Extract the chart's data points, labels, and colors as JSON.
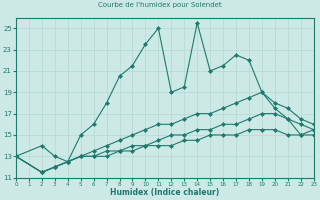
{
  "title": "Courbe de l'humidex pour Solendet",
  "xlabel": "Humidex (Indice chaleur)",
  "xlim": [
    0,
    23
  ],
  "ylim": [
    11,
    26
  ],
  "yticks": [
    11,
    13,
    15,
    17,
    19,
    21,
    23,
    25
  ],
  "xticks": [
    0,
    1,
    2,
    3,
    4,
    5,
    6,
    7,
    8,
    9,
    10,
    11,
    12,
    13,
    14,
    15,
    16,
    17,
    18,
    19,
    20,
    21,
    22,
    23
  ],
  "bg_color": "#cce9e5",
  "line_color": "#1e7a6d",
  "grid_color": "#b8dbd6",
  "lines": [
    {
      "x": [
        0,
        2,
        3,
        4,
        5,
        6,
        7,
        8,
        9,
        10,
        11,
        12,
        13,
        14,
        15,
        16,
        17,
        18,
        19,
        20,
        21,
        22,
        23
      ],
      "y": [
        13,
        14,
        13,
        12.5,
        15,
        16,
        18,
        20.5,
        21.5,
        23.5,
        25,
        19,
        19.5,
        25.5,
        21,
        21.5,
        22.5,
        22,
        19,
        17.5,
        16.5,
        15,
        15.5
      ]
    },
    {
      "x": [
        0,
        2,
        3,
        4,
        5,
        6,
        7,
        8,
        9,
        10,
        11,
        12,
        13,
        14,
        15,
        16,
        17,
        18,
        19,
        20,
        21,
        22,
        23
      ],
      "y": [
        13,
        11.5,
        12,
        12.5,
        13,
        13.5,
        14,
        14.5,
        15,
        15.5,
        16,
        16,
        16.5,
        17,
        17,
        17.5,
        18,
        18.5,
        19,
        18,
        17.5,
        16.5,
        16
      ]
    },
    {
      "x": [
        0,
        2,
        3,
        4,
        5,
        6,
        7,
        8,
        9,
        10,
        11,
        12,
        13,
        14,
        15,
        16,
        17,
        18,
        19,
        20,
        21,
        22,
        23
      ],
      "y": [
        13,
        11.5,
        12,
        12.5,
        13,
        13,
        13.5,
        13.5,
        14,
        14,
        14.5,
        15,
        15,
        15.5,
        15.5,
        16,
        16,
        16.5,
        17,
        17,
        16.5,
        16,
        15.5
      ]
    },
    {
      "x": [
        0,
        2,
        3,
        4,
        5,
        6,
        7,
        8,
        9,
        10,
        11,
        12,
        13,
        14,
        15,
        16,
        17,
        18,
        19,
        20,
        21,
        22,
        23
      ],
      "y": [
        13,
        11.5,
        12,
        12.5,
        13,
        13,
        13,
        13.5,
        13.5,
        14,
        14,
        14,
        14.5,
        14.5,
        15,
        15,
        15,
        15.5,
        15.5,
        15.5,
        15,
        15,
        15
      ]
    }
  ]
}
